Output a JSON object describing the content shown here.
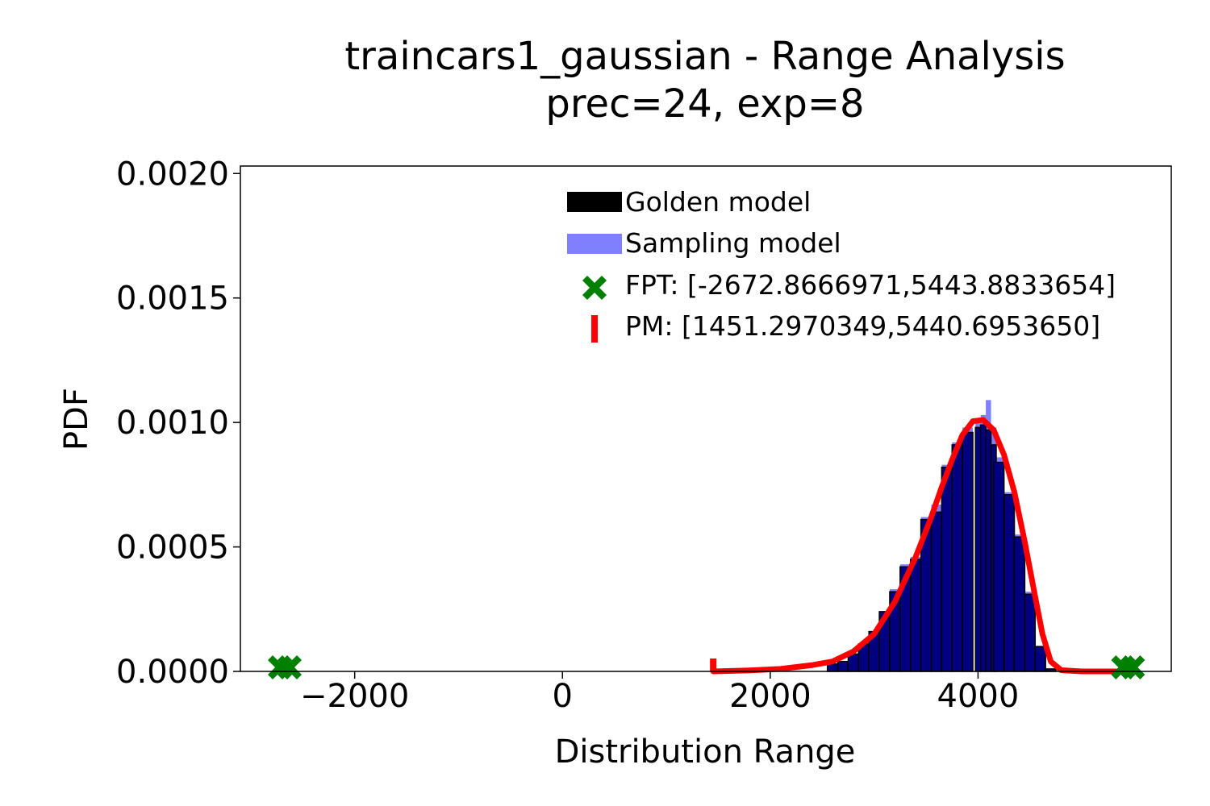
{
  "chart_data": {
    "type": "bar",
    "title_line1": "traincars1_gaussian - Range Analysis",
    "title_line2": "prec=24, exp=8",
    "xlabel": "Distribution Range",
    "ylabel": "PDF",
    "xlim": [
      -3100,
      5860
    ],
    "ylim": [
      0,
      0.00203
    ],
    "xticks": [
      -2000,
      0,
      2000,
      4000
    ],
    "xtick_labels": [
      "−2000",
      "0",
      "2000",
      "4000"
    ],
    "yticks": [
      0,
      0.0005,
      0.001,
      0.0015,
      0.002
    ],
    "ytick_labels": [
      "0.0000",
      "0.0005",
      "0.0010",
      "0.0015",
      "0.0020"
    ],
    "grid": false,
    "legend_position": "top-right",
    "legend": [
      {
        "key": "golden",
        "label": "Golden model"
      },
      {
        "key": "sampling",
        "label": "Sampling model"
      },
      {
        "key": "fpt",
        "label": "FPT: [-2672.8666971,5443.8833654]"
      },
      {
        "key": "pm",
        "label": "PM: [1451.2970349,5440.6953650]"
      }
    ],
    "colors": {
      "golden": "#000000",
      "sampling": "#8080ff",
      "overlap": "#000080",
      "pm_curve": "#ff0000",
      "fpt": "#008000"
    },
    "series": [
      {
        "name": "Sampling model",
        "x": [
          2600,
          2700,
          2800,
          2900,
          3000,
          3100,
          3200,
          3300,
          3400,
          3500,
          3600,
          3700,
          3800,
          3900,
          4000,
          4050,
          4100,
          4150,
          4200,
          4300,
          4400,
          4500,
          4600,
          4700,
          4800
        ],
        "y": [
          3e-05,
          4e-05,
          7e-05,
          0.00011,
          0.00016,
          0.00024,
          0.00033,
          0.00043,
          0.00046,
          0.00062,
          0.00067,
          0.00083,
          0.00092,
          0.00098,
          0.00101,
          0.00103,
          0.00109,
          0.00098,
          0.00086,
          0.00072,
          0.00055,
          0.00032,
          0.0001,
          1e-05,
          0.0
        ]
      },
      {
        "name": "Golden model",
        "x": [
          2600,
          2700,
          2800,
          2900,
          3000,
          3100,
          3200,
          3300,
          3400,
          3500,
          3600,
          3700,
          3800,
          3900,
          4000,
          4050,
          4100,
          4150,
          4200,
          4300,
          4400,
          4500,
          4600,
          4700,
          4800
        ],
        "y": [
          3e-05,
          4e-05,
          7e-05,
          0.00011,
          0.00016,
          0.00024,
          0.00032,
          0.00042,
          0.00045,
          0.00061,
          0.00064,
          0.00082,
          0.00091,
          0.00096,
          0.00098,
          0.00099,
          0.00097,
          0.00091,
          0.00084,
          0.00071,
          0.00054,
          0.00031,
          0.0001,
          1e-05,
          0.0
        ]
      },
      {
        "name": "PM",
        "type": "line",
        "x": [
          1451.3,
          1800,
          2100,
          2400,
          2600,
          2800,
          3000,
          3200,
          3400,
          3550,
          3650,
          3750,
          3850,
          3950,
          4050,
          4150,
          4250,
          4350,
          4450,
          4550,
          4620,
          4700,
          4800,
          5000,
          5200,
          5440.7
        ],
        "y": [
          0.0,
          4e-06,
          1e-05,
          2.5e-05,
          4e-05,
          8e-05,
          0.00015,
          0.00028,
          0.00046,
          0.00062,
          0.00074,
          0.00085,
          0.00095,
          0.001005,
          0.00101,
          0.00097,
          0.00087,
          0.00072,
          0.00052,
          0.0003,
          0.00015,
          4e-05,
          5e-06,
          0.0,
          0.0,
          0.0
        ]
      }
    ],
    "fpt_range": [
      -2672.8666971,
      5443.8833654
    ],
    "pm_range": [
      1451.2970349,
      5440.695365
    ]
  }
}
